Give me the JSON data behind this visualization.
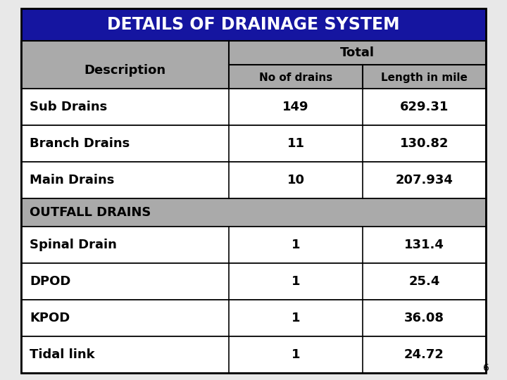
{
  "title": "DETAILS OF DRAINAGE SYSTEM",
  "title_bg": "#1515a0",
  "title_color": "#ffffff",
  "header_bg": "#aaaaaa",
  "outfall_bg": "#aaaaaa",
  "row_bg_white": "#ffffff",
  "col_header_1": "Description",
  "col_header_2": "Total",
  "col_sub1": "No of drains",
  "col_sub2": "Length in mile",
  "rows": [
    {
      "desc": "Sub Drains",
      "no": "149",
      "len": "629.31",
      "bg": "#ffffff",
      "span": false
    },
    {
      "desc": "Branch Drains",
      "no": "11",
      "len": "130.82",
      "bg": "#ffffff",
      "span": false
    },
    {
      "desc": "Main Drains",
      "no": "10",
      "len": "207.934",
      "bg": "#ffffff",
      "span": false
    },
    {
      "desc": "OUTFALL DRAINS",
      "no": "",
      "len": "",
      "bg": "#aaaaaa",
      "span": true
    },
    {
      "desc": "Spinal Drain",
      "no": "1",
      "len": "131.4",
      "bg": "#ffffff",
      "span": false
    },
    {
      "desc": "DPOD",
      "no": "1",
      "len": "25.4",
      "bg": "#ffffff",
      "span": false
    },
    {
      "desc": "KPOD",
      "no": "1",
      "len": "36.08",
      "bg": "#ffffff",
      "span": false
    },
    {
      "desc": "Tidal link",
      "no": "1",
      "len": "24.72",
      "bg": "#ffffff",
      "span": false
    }
  ],
  "page_number": "6",
  "figsize": [
    7.2,
    5.4
  ],
  "dpi": 100,
  "bg_color": "#e8e8e8"
}
